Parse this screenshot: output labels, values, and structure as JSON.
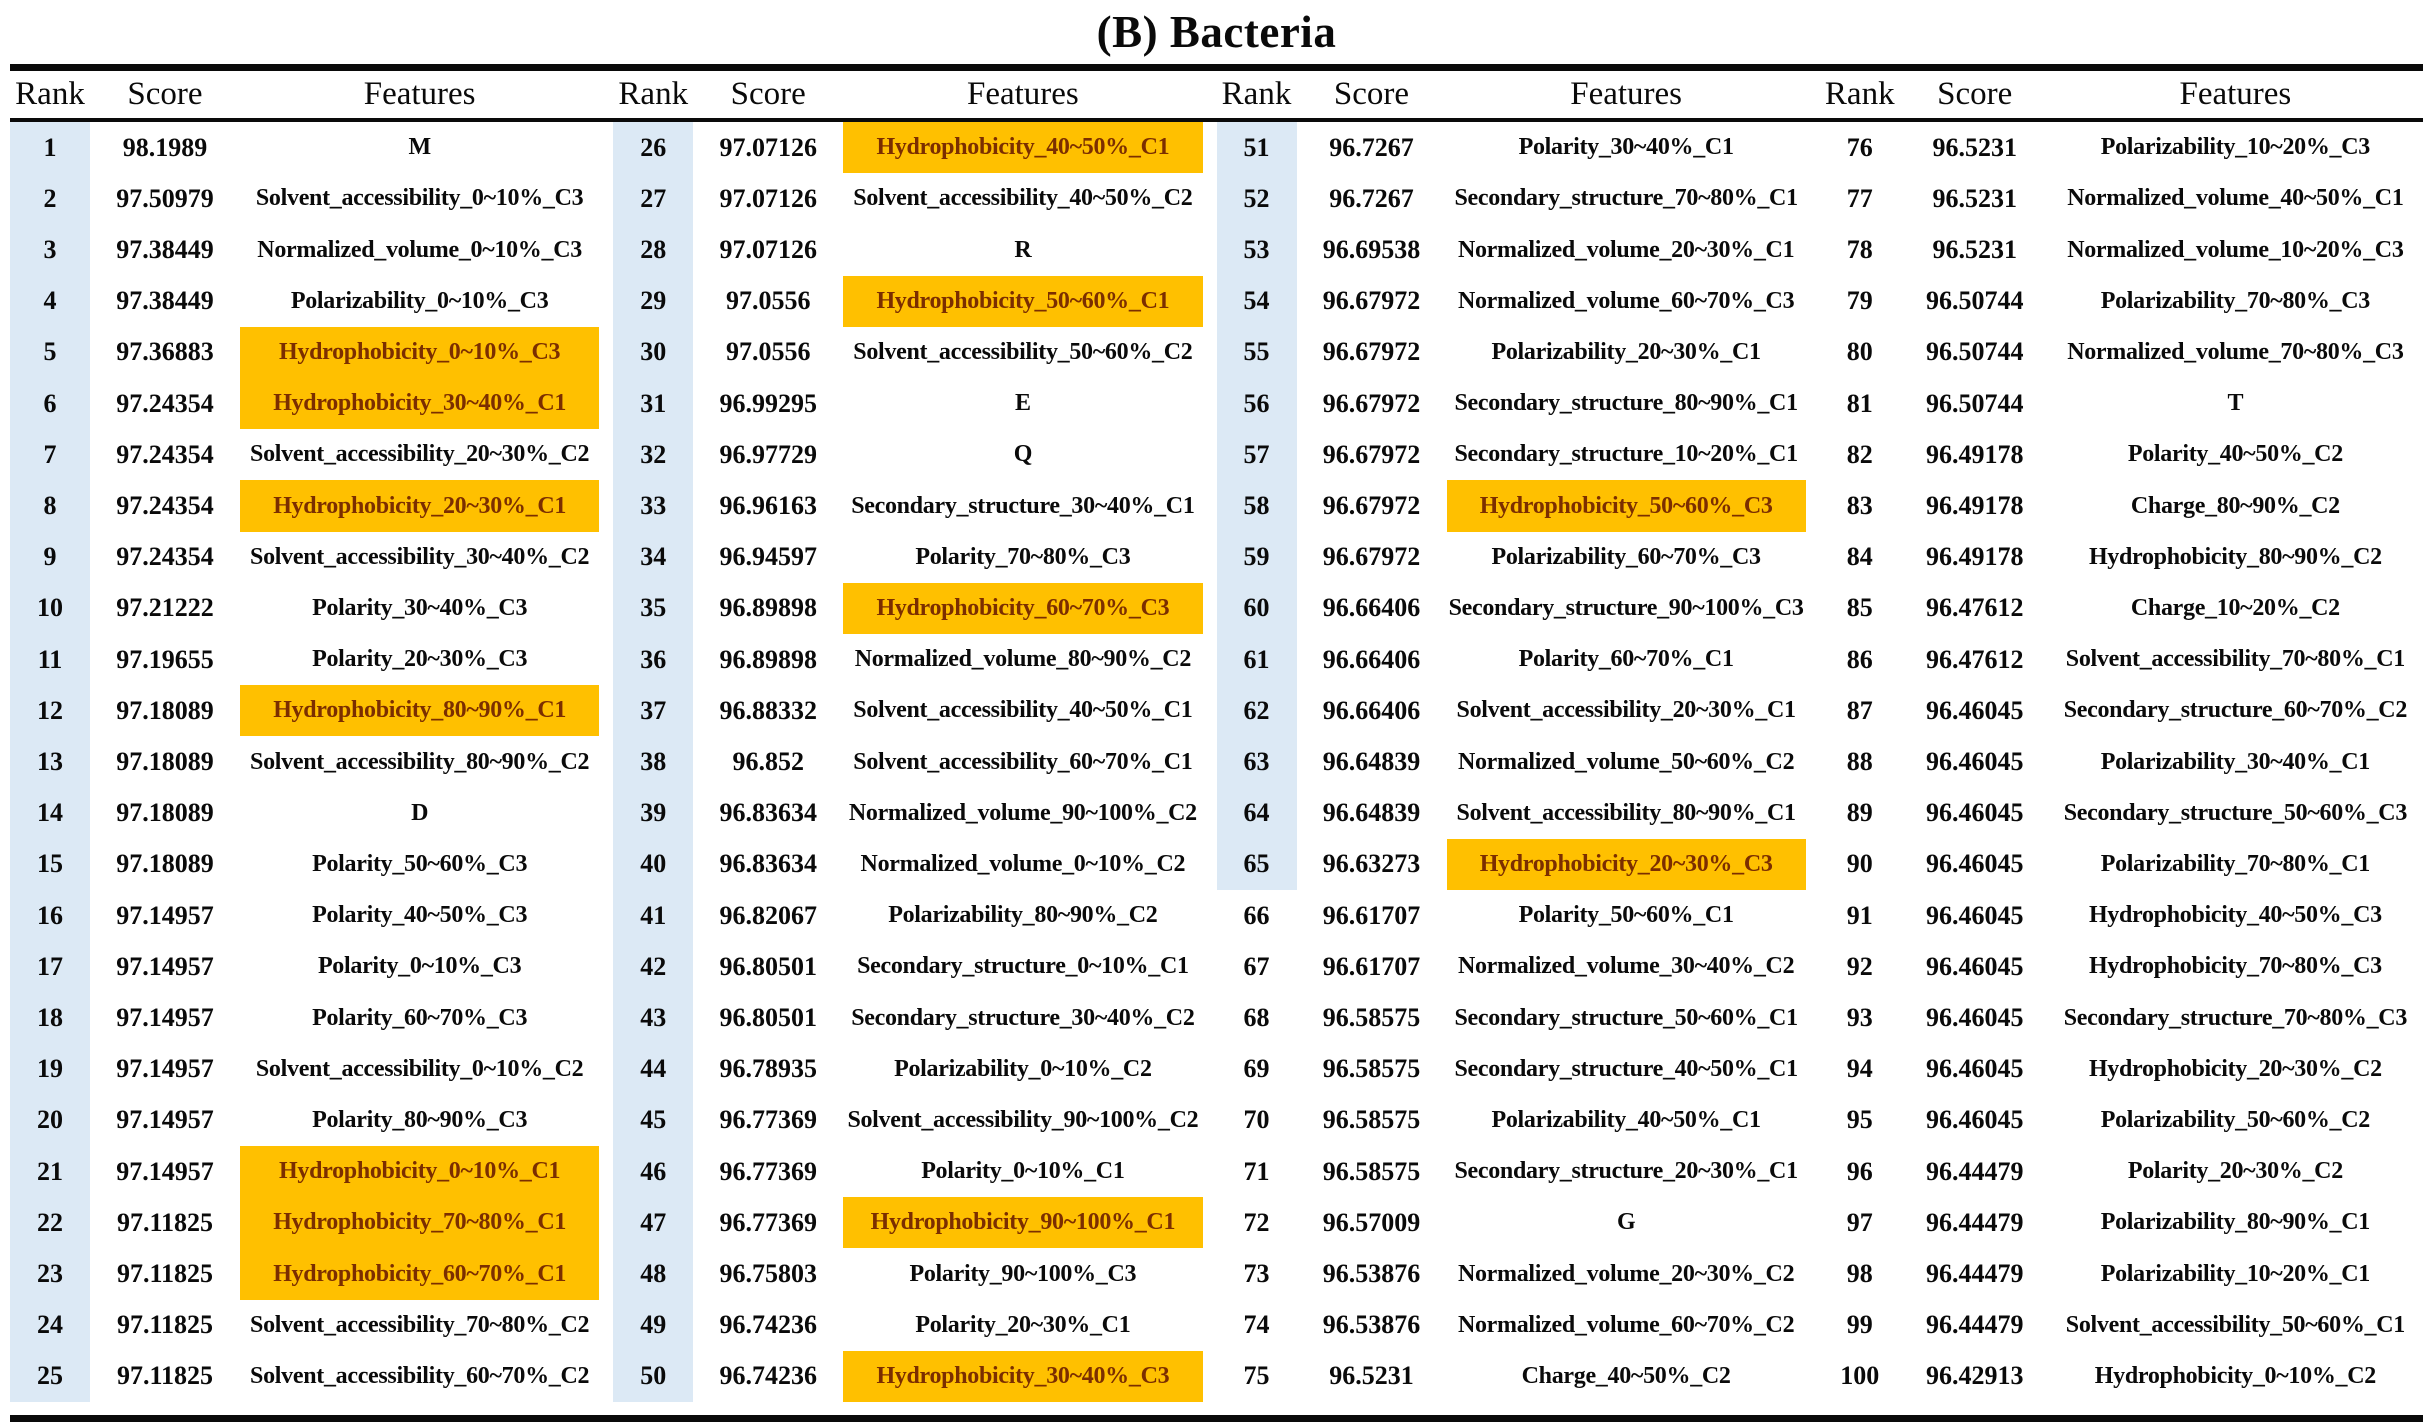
{
  "title": "(B) Bacteria",
  "columns": {
    "rank": "Rank",
    "score": "Score",
    "features": "Features"
  },
  "colors": {
    "highlight_bg": "#FFC000",
    "highlight_text": "#7B2E00",
    "rank_band_bg": "#DCE9F5",
    "rule_color": "#0a0a0a"
  },
  "blue_rank_cutoff": 65,
  "groups": [
    {
      "rows": [
        [
          "1",
          "98.1989",
          "M",
          0
        ],
        [
          "2",
          "97.50979",
          "Solvent_accessibility_0~10%_C3",
          0
        ],
        [
          "3",
          "97.38449",
          "Normalized_volume_0~10%_C3",
          0
        ],
        [
          "4",
          "97.38449",
          "Polarizability_0~10%_C3",
          0
        ],
        [
          "5",
          "97.36883",
          "Hydrophobicity_0~10%_C3",
          1
        ],
        [
          "6",
          "97.24354",
          "Hydrophobicity_30~40%_C1",
          1
        ],
        [
          "7",
          "97.24354",
          "Solvent_accessibility_20~30%_C2",
          0
        ],
        [
          "8",
          "97.24354",
          "Hydrophobicity_20~30%_C1",
          1
        ],
        [
          "9",
          "97.24354",
          "Solvent_accessibility_30~40%_C2",
          0
        ],
        [
          "10",
          "97.21222",
          "Polarity_30~40%_C3",
          0
        ],
        [
          "11",
          "97.19655",
          "Polarity_20~30%_C3",
          0
        ],
        [
          "12",
          "97.18089",
          "Hydrophobicity_80~90%_C1",
          1
        ],
        [
          "13",
          "97.18089",
          "Solvent_accessibility_80~90%_C2",
          0
        ],
        [
          "14",
          "97.18089",
          "D",
          0
        ],
        [
          "15",
          "97.18089",
          "Polarity_50~60%_C3",
          0
        ],
        [
          "16",
          "97.14957",
          "Polarity_40~50%_C3",
          0
        ],
        [
          "17",
          "97.14957",
          "Polarity_0~10%_C3",
          0
        ],
        [
          "18",
          "97.14957",
          "Polarity_60~70%_C3",
          0
        ],
        [
          "19",
          "97.14957",
          "Solvent_accessibility_0~10%_C2",
          0
        ],
        [
          "20",
          "97.14957",
          "Polarity_80~90%_C3",
          0
        ],
        [
          "21",
          "97.14957",
          "Hydrophobicity_0~10%_C1",
          1
        ],
        [
          "22",
          "97.11825",
          "Hydrophobicity_70~80%_C1",
          1
        ],
        [
          "23",
          "97.11825",
          "Hydrophobicity_60~70%_C1",
          1
        ],
        [
          "24",
          "97.11825",
          "Solvent_accessibility_70~80%_C2",
          0
        ],
        [
          "25",
          "97.11825",
          "Solvent_accessibility_60~70%_C2",
          0
        ]
      ]
    },
    {
      "rows": [
        [
          "26",
          "97.07126",
          "Hydrophobicity_40~50%_C1",
          1
        ],
        [
          "27",
          "97.07126",
          "Solvent_accessibility_40~50%_C2",
          0
        ],
        [
          "28",
          "97.07126",
          "R",
          0
        ],
        [
          "29",
          "97.0556",
          "Hydrophobicity_50~60%_C1",
          1
        ],
        [
          "30",
          "97.0556",
          "Solvent_accessibility_50~60%_C2",
          0
        ],
        [
          "31",
          "96.99295",
          "E",
          0
        ],
        [
          "32",
          "96.97729",
          "Q",
          0
        ],
        [
          "33",
          "96.96163",
          "Secondary_structure_30~40%_C1",
          0
        ],
        [
          "34",
          "96.94597",
          "Polarity_70~80%_C3",
          0
        ],
        [
          "35",
          "96.89898",
          "Hydrophobicity_60~70%_C3",
          1
        ],
        [
          "36",
          "96.89898",
          "Normalized_volume_80~90%_C2",
          0
        ],
        [
          "37",
          "96.88332",
          "Solvent_accessibility_40~50%_C1",
          0
        ],
        [
          "38",
          "96.852",
          "Solvent_accessibility_60~70%_C1",
          0
        ],
        [
          "39",
          "96.83634",
          "Normalized_volume_90~100%_C2",
          0
        ],
        [
          "40",
          "96.83634",
          "Normalized_volume_0~10%_C2",
          0
        ],
        [
          "41",
          "96.82067",
          "Polarizability_80~90%_C2",
          0
        ],
        [
          "42",
          "96.80501",
          "Secondary_structure_0~10%_C1",
          0
        ],
        [
          "43",
          "96.80501",
          "Secondary_structure_30~40%_C2",
          0
        ],
        [
          "44",
          "96.78935",
          "Polarizability_0~10%_C2",
          0
        ],
        [
          "45",
          "96.77369",
          "Solvent_accessibility_90~100%_C2",
          0
        ],
        [
          "46",
          "96.77369",
          "Polarity_0~10%_C1",
          0
        ],
        [
          "47",
          "96.77369",
          "Hydrophobicity_90~100%_C1",
          1
        ],
        [
          "48",
          "96.75803",
          "Polarity_90~100%_C3",
          0
        ],
        [
          "49",
          "96.74236",
          "Polarity_20~30%_C1",
          0
        ],
        [
          "50",
          "96.74236",
          "Hydrophobicity_30~40%_C3",
          1
        ]
      ]
    },
    {
      "rows": [
        [
          "51",
          "96.7267",
          "Polarity_30~40%_C1",
          0
        ],
        [
          "52",
          "96.7267",
          "Secondary_structure_70~80%_C1",
          0
        ],
        [
          "53",
          "96.69538",
          "Normalized_volume_20~30%_C1",
          0
        ],
        [
          "54",
          "96.67972",
          "Normalized_volume_60~70%_C3",
          0
        ],
        [
          "55",
          "96.67972",
          "Polarizability_20~30%_C1",
          0
        ],
        [
          "56",
          "96.67972",
          "Secondary_structure_80~90%_C1",
          0
        ],
        [
          "57",
          "96.67972",
          "Secondary_structure_10~20%_C1",
          0
        ],
        [
          "58",
          "96.67972",
          "Hydrophobicity_50~60%_C3",
          1
        ],
        [
          "59",
          "96.67972",
          "Polarizability_60~70%_C3",
          0
        ],
        [
          "60",
          "96.66406",
          "Secondary_structure_90~100%_C3",
          0
        ],
        [
          "61",
          "96.66406",
          "Polarity_60~70%_C1",
          0
        ],
        [
          "62",
          "96.66406",
          "Solvent_accessibility_20~30%_C1",
          0
        ],
        [
          "63",
          "96.64839",
          "Normalized_volume_50~60%_C2",
          0
        ],
        [
          "64",
          "96.64839",
          "Solvent_accessibility_80~90%_C1",
          0
        ],
        [
          "65",
          "96.63273",
          "Hydrophobicity_20~30%_C3",
          1
        ],
        [
          "66",
          "96.61707",
          "Polarity_50~60%_C1",
          0
        ],
        [
          "67",
          "96.61707",
          "Normalized_volume_30~40%_C2",
          0
        ],
        [
          "68",
          "96.58575",
          "Secondary_structure_50~60%_C1",
          0
        ],
        [
          "69",
          "96.58575",
          "Secondary_structure_40~50%_C1",
          0
        ],
        [
          "70",
          "96.58575",
          "Polarizability_40~50%_C1",
          0
        ],
        [
          "71",
          "96.58575",
          "Secondary_structure_20~30%_C1",
          0
        ],
        [
          "72",
          "96.57009",
          "G",
          0
        ],
        [
          "73",
          "96.53876",
          "Normalized_volume_20~30%_C2",
          0
        ],
        [
          "74",
          "96.53876",
          "Normalized_volume_60~70%_C2",
          0
        ],
        [
          "75",
          "96.5231",
          "Charge_40~50%_C2",
          0
        ]
      ]
    },
    {
      "rows": [
        [
          "76",
          "96.5231",
          "Polarizability_10~20%_C3",
          0
        ],
        [
          "77",
          "96.5231",
          "Normalized_volume_40~50%_C1",
          0
        ],
        [
          "78",
          "96.5231",
          "Normalized_volume_10~20%_C3",
          0
        ],
        [
          "79",
          "96.50744",
          "Polarizability_70~80%_C3",
          0
        ],
        [
          "80",
          "96.50744",
          "Normalized_volume_70~80%_C3",
          0
        ],
        [
          "81",
          "96.50744",
          "T",
          0
        ],
        [
          "82",
          "96.49178",
          "Polarity_40~50%_C2",
          0
        ],
        [
          "83",
          "96.49178",
          "Charge_80~90%_C2",
          0
        ],
        [
          "84",
          "96.49178",
          "Hydrophobicity_80~90%_C2",
          0
        ],
        [
          "85",
          "96.47612",
          "Charge_10~20%_C2",
          0
        ],
        [
          "86",
          "96.47612",
          "Solvent_accessibility_70~80%_C1",
          0
        ],
        [
          "87",
          "96.46045",
          "Secondary_structure_60~70%_C2",
          0
        ],
        [
          "88",
          "96.46045",
          "Polarizability_30~40%_C1",
          0
        ],
        [
          "89",
          "96.46045",
          "Secondary_structure_50~60%_C3",
          0
        ],
        [
          "90",
          "96.46045",
          "Polarizability_70~80%_C1",
          0
        ],
        [
          "91",
          "96.46045",
          "Hydrophobicity_40~50%_C3",
          0
        ],
        [
          "92",
          "96.46045",
          "Hydrophobicity_70~80%_C3",
          0
        ],
        [
          "93",
          "96.46045",
          "Secondary_structure_70~80%_C3",
          0
        ],
        [
          "94",
          "96.46045",
          "Hydrophobicity_20~30%_C2",
          0
        ],
        [
          "95",
          "96.46045",
          "Polarizability_50~60%_C2",
          0
        ],
        [
          "96",
          "96.44479",
          "Polarity_20~30%_C2",
          0
        ],
        [
          "97",
          "96.44479",
          "Polarizability_80~90%_C1",
          0
        ],
        [
          "98",
          "96.44479",
          "Polarizability_10~20%_C1",
          0
        ],
        [
          "99",
          "96.44479",
          "Solvent_accessibility_50~60%_C1",
          0
        ],
        [
          "100",
          "96.42913",
          "Hydrophobicity_0~10%_C2",
          0
        ]
      ]
    }
  ]
}
